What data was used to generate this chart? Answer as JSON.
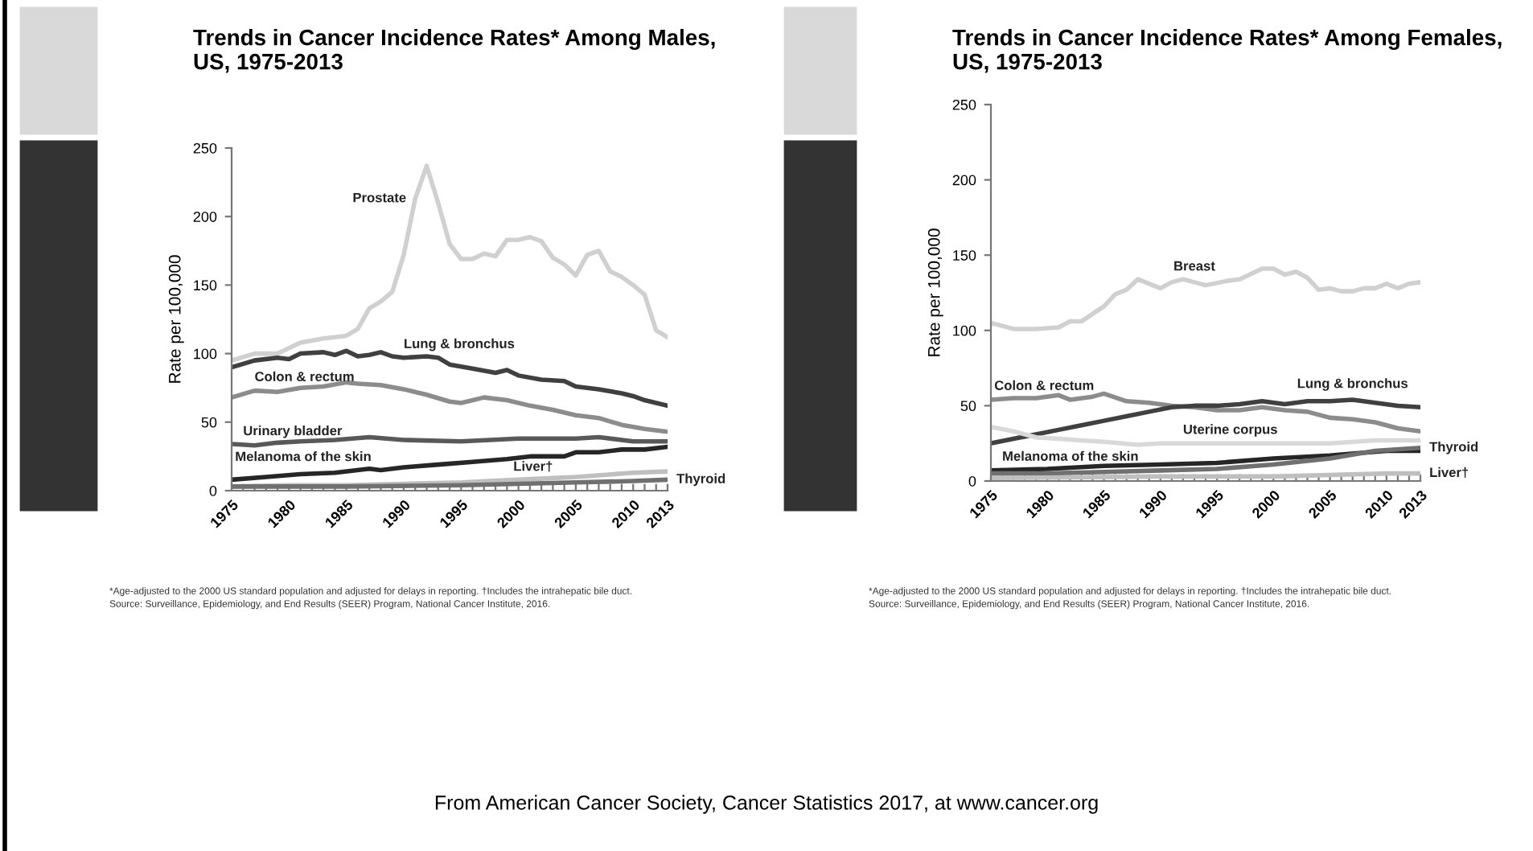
{
  "chart_data": [
    {
      "type": "line",
      "title": "Trends in Cancer Incidence Rates* Among Males, US, 1975-2013",
      "ylabel": "Rate per 100,000",
      "ylim": [
        0,
        250
      ],
      "yticks": [
        0,
        50,
        100,
        150,
        200,
        250
      ],
      "xlim": [
        1975,
        2013
      ],
      "xticks": [
        1975,
        {
          "value": 1976,
          "label": null
        },
        {
          "value": 1977,
          "label": null
        },
        {
          "value": 1978,
          "label": null
        },
        {
          "value": 1979,
          "label": null
        },
        1980,
        {
          "value": 1981,
          "label": null
        },
        {
          "value": 1982,
          "label": null
        },
        {
          "value": 1983,
          "label": null
        },
        {
          "value": 1984,
          "label": null
        },
        1985,
        {
          "value": 1986,
          "label": null
        },
        {
          "value": 1987,
          "label": null
        },
        {
          "value": 1988,
          "label": null
        },
        {
          "value": 1989,
          "label": null
        },
        1990,
        {
          "value": 1991,
          "label": null
        },
        {
          "value": 1992,
          "label": null
        },
        {
          "value": 1993,
          "label": null
        },
        {
          "value": 1994,
          "label": null
        },
        1995,
        {
          "value": 1996,
          "label": null
        },
        {
          "value": 1997,
          "label": null
        },
        {
          "value": 1998,
          "label": null
        },
        {
          "value": 1999,
          "label": null
        },
        2000,
        {
          "value": 2001,
          "label": null
        },
        {
          "value": 2002,
          "label": null
        },
        {
          "value": 2003,
          "label": null
        },
        {
          "value": 2004,
          "label": null
        },
        2005,
        {
          "value": 2006,
          "label": null
        },
        {
          "value": 2007,
          "label": null
        },
        {
          "value": 2008,
          "label": null
        },
        {
          "value": 2009,
          "label": null
        },
        2010,
        {
          "value": 2011,
          "label": null
        },
        {
          "value": 2012,
          "label": null
        },
        2013
      ],
      "grid": false,
      "legend": false,
      "series": [
        {
          "name": "Prostate",
          "color": "#d0d0d0",
          "x": [
            1975,
            1977,
            1979,
            1981,
            1983,
            1985,
            1986,
            1987,
            1988,
            1989,
            1990,
            1991,
            1992,
            1993,
            1994,
            1995,
            1996,
            1997,
            1998,
            1999,
            2000,
            2001,
            2002,
            2003,
            2004,
            2005,
            2006,
            2007,
            2008,
            2009,
            2010,
            2011,
            2012,
            2013
          ],
          "values": [
            95,
            100,
            100,
            108,
            111,
            113,
            118,
            133,
            138,
            145,
            172,
            213,
            237,
            210,
            180,
            169,
            169,
            173,
            171,
            183,
            183,
            185,
            182,
            170,
            165,
            157,
            172,
            175,
            160,
            156,
            150,
            143,
            117,
            112
          ]
        },
        {
          "name": "Lung & bronchus",
          "color": "#404040",
          "x": [
            1975,
            1977,
            1979,
            1980,
            1981,
            1983,
            1984,
            1985,
            1986,
            1987,
            1988,
            1989,
            1990,
            1992,
            1993,
            1994,
            1996,
            1998,
            1999,
            2000,
            2002,
            2004,
            2005,
            2007,
            2009,
            2010,
            2011,
            2013
          ],
          "values": [
            90,
            95,
            97,
            96,
            100,
            101,
            99,
            102,
            98,
            99,
            101,
            98,
            97,
            98,
            97,
            92,
            89,
            86,
            88,
            84,
            81,
            80,
            76,
            74,
            71,
            69,
            66,
            62
          ]
        },
        {
          "name": "Colon & rectum",
          "color": "#8c8c8c",
          "x": [
            1975,
            1977,
            1979,
            1981,
            1983,
            1985,
            1986,
            1988,
            1990,
            1992,
            1994,
            1995,
            1997,
            1999,
            2001,
            2003,
            2005,
            2007,
            2009,
            2011,
            2013
          ],
          "values": [
            68,
            73,
            72,
            75,
            76,
            79,
            78,
            77,
            74,
            70,
            65,
            64,
            68,
            66,
            62,
            59,
            55,
            53,
            48,
            45,
            43
          ]
        },
        {
          "name": "Urinary bladder",
          "color": "#595959",
          "x": [
            1975,
            1977,
            1979,
            1981,
            1984,
            1987,
            1990,
            1995,
            2000,
            2005,
            2007,
            2010,
            2013
          ],
          "values": [
            34,
            33,
            35,
            36,
            37,
            39,
            37,
            36,
            38,
            38,
            39,
            36,
            36
          ]
        },
        {
          "name": "Melanoma of the skin",
          "color": "#262626",
          "x": [
            1975,
            1978,
            1981,
            1984,
            1987,
            1988,
            1990,
            1993,
            1996,
            1999,
            2001,
            2004,
            2005,
            2007,
            2009,
            2011,
            2013
          ],
          "values": [
            8,
            10,
            12,
            13,
            16,
            15,
            17,
            19,
            21,
            23,
            25,
            25,
            28,
            28,
            30,
            30,
            32
          ]
        },
        {
          "name": "Liver†",
          "color": "#bfbfbf",
          "x": [
            1975,
            1980,
            1985,
            1990,
            1995,
            2000,
            2005,
            2010,
            2013
          ],
          "values": [
            3,
            4,
            4,
            5,
            6,
            8,
            10,
            13,
            14
          ]
        },
        {
          "name": "Thyroid",
          "color": "#707070",
          "x": [
            1975,
            1985,
            1995,
            2000,
            2005,
            2010,
            2013
          ],
          "values": [
            3,
            3,
            4,
            5,
            6,
            7,
            8
          ]
        }
      ],
      "annotations": [
        "*Age-adjusted to the 2000 US standard population and adjusted for delays in reporting. †Includes the intrahepatic bile duct.",
        "Source: Surveillance, Epidemiology, and End Results (SEER) Program, National Cancer Institute, 2016.",
        "From American Cancer Society, Cancer Statistics 2017, at www.cancer.org"
      ]
    },
    {
      "type": "line",
      "title": "Trends in Cancer Incidence Rates* Among Females, US, 1975-2013",
      "ylabel": "Rate per 100,000",
      "ylim": [
        0,
        250
      ],
      "yticks": [
        0,
        50,
        100,
        150,
        200,
        250
      ],
      "xlim": [
        1975,
        2013
      ],
      "xticks": [
        1975,
        {
          "value": 1976,
          "label": null
        },
        {
          "value": 1977,
          "label": null
        },
        {
          "value": 1978,
          "label": null
        },
        {
          "value": 1979,
          "label": null
        },
        1980,
        {
          "value": 1981,
          "label": null
        },
        {
          "value": 1982,
          "label": null
        },
        {
          "value": 1983,
          "label": null
        },
        {
          "value": 1984,
          "label": null
        },
        1985,
        {
          "value": 1986,
          "label": null
        },
        {
          "value": 1987,
          "label": null
        },
        {
          "value": 1988,
          "label": null
        },
        {
          "value": 1989,
          "label": null
        },
        1990,
        {
          "value": 1991,
          "label": null
        },
        {
          "value": 1992,
          "label": null
        },
        {
          "value": 1993,
          "label": null
        },
        {
          "value": 1994,
          "label": null
        },
        1995,
        {
          "value": 1996,
          "label": null
        },
        {
          "value": 1997,
          "label": null
        },
        {
          "value": 1998,
          "label": null
        },
        {
          "value": 1999,
          "label": null
        },
        2000,
        {
          "value": 2001,
          "label": null
        },
        {
          "value": 2002,
          "label": null
        },
        {
          "value": 2003,
          "label": null
        },
        {
          "value": 2004,
          "label": null
        },
        2005,
        {
          "value": 2006,
          "label": null
        },
        {
          "value": 2007,
          "label": null
        },
        {
          "value": 2008,
          "label": null
        },
        {
          "value": 2009,
          "label": null
        },
        2010,
        {
          "value": 2011,
          "label": null
        },
        {
          "value": 2012,
          "label": null
        },
        2013
      ],
      "grid": false,
      "legend": false,
      "series": [
        {
          "name": "Breast",
          "color": "#d0d0d0",
          "x": [
            1975,
            1977,
            1979,
            1981,
            1982,
            1983,
            1985,
            1986,
            1987,
            1988,
            1990,
            1991,
            1992,
            1994,
            1996,
            1997,
            1999,
            2000,
            2001,
            2002,
            2003,
            2004,
            2005,
            2006,
            2007,
            2008,
            2009,
            2010,
            2011,
            2012,
            2013
          ],
          "values": [
            105,
            101,
            101,
            102,
            106,
            106,
            116,
            124,
            127,
            134,
            128,
            132,
            134,
            130,
            133,
            134,
            141,
            141,
            137,
            139,
            135,
            127,
            128,
            126,
            126,
            128,
            128,
            131,
            128,
            131,
            132
          ]
        },
        {
          "name": "Colon & rectum",
          "color": "#8c8c8c",
          "x": [
            1975,
            1977,
            1979,
            1981,
            1982,
            1984,
            1985,
            1987,
            1989,
            1991,
            1993,
            1995,
            1997,
            1999,
            2001,
            2003,
            2005,
            2007,
            2009,
            2011,
            2013
          ],
          "values": [
            54,
            55,
            55,
            57,
            54,
            56,
            58,
            53,
            52,
            50,
            49,
            47,
            47,
            49,
            47,
            46,
            42,
            41,
            39,
            35,
            33
          ]
        },
        {
          "name": "Lung & bronchus",
          "color": "#404040",
          "x": [
            1975,
            1977,
            1979,
            1981,
            1983,
            1985,
            1987,
            1989,
            1991,
            1993,
            1995,
            1997,
            1999,
            2001,
            2003,
            2005,
            2007,
            2009,
            2011,
            2013
          ],
          "values": [
            25,
            28,
            31,
            34,
            37,
            40,
            43,
            46,
            49,
            50,
            50,
            51,
            53,
            51,
            53,
            53,
            54,
            52,
            50,
            49
          ]
        },
        {
          "name": "Uterine corpus",
          "color": "#d9d9d9",
          "x": [
            1975,
            1977,
            1979,
            1981,
            1983,
            1985,
            1988,
            1990,
            1995,
            2000,
            2005,
            2009,
            2013
          ],
          "values": [
            36,
            33,
            29,
            28,
            27,
            26,
            24,
            25,
            25,
            25,
            25,
            27,
            27
          ]
        },
        {
          "name": "Melanoma of the skin",
          "color": "#262626",
          "x": [
            1975,
            1980,
            1985,
            1990,
            1995,
            2000,
            2005,
            2010,
            2013
          ],
          "values": [
            7,
            8,
            10,
            11,
            12,
            15,
            17,
            20,
            20
          ]
        },
        {
          "name": "Thyroid",
          "color": "#707070",
          "x": [
            1975,
            1980,
            1985,
            1990,
            1995,
            2000,
            2005,
            2009,
            2013
          ],
          "values": [
            5,
            5,
            6,
            7,
            8,
            11,
            15,
            20,
            22
          ]
        },
        {
          "name": "Liver†",
          "color": "#bfbfbf",
          "x": [
            1975,
            1990,
            2000,
            2005,
            2010,
            2013
          ],
          "values": [
            2,
            3,
            3,
            4,
            5,
            5
          ]
        }
      ],
      "annotations": [
        "*Age-adjusted to the 2000 US standard population and adjusted for delays in reporting. †Includes the intrahepatic bile duct.",
        "Source: Surveillance, Epidemiology, and End Results (SEER) Program, National Cancer Institute, 2016."
      ]
    }
  ]
}
